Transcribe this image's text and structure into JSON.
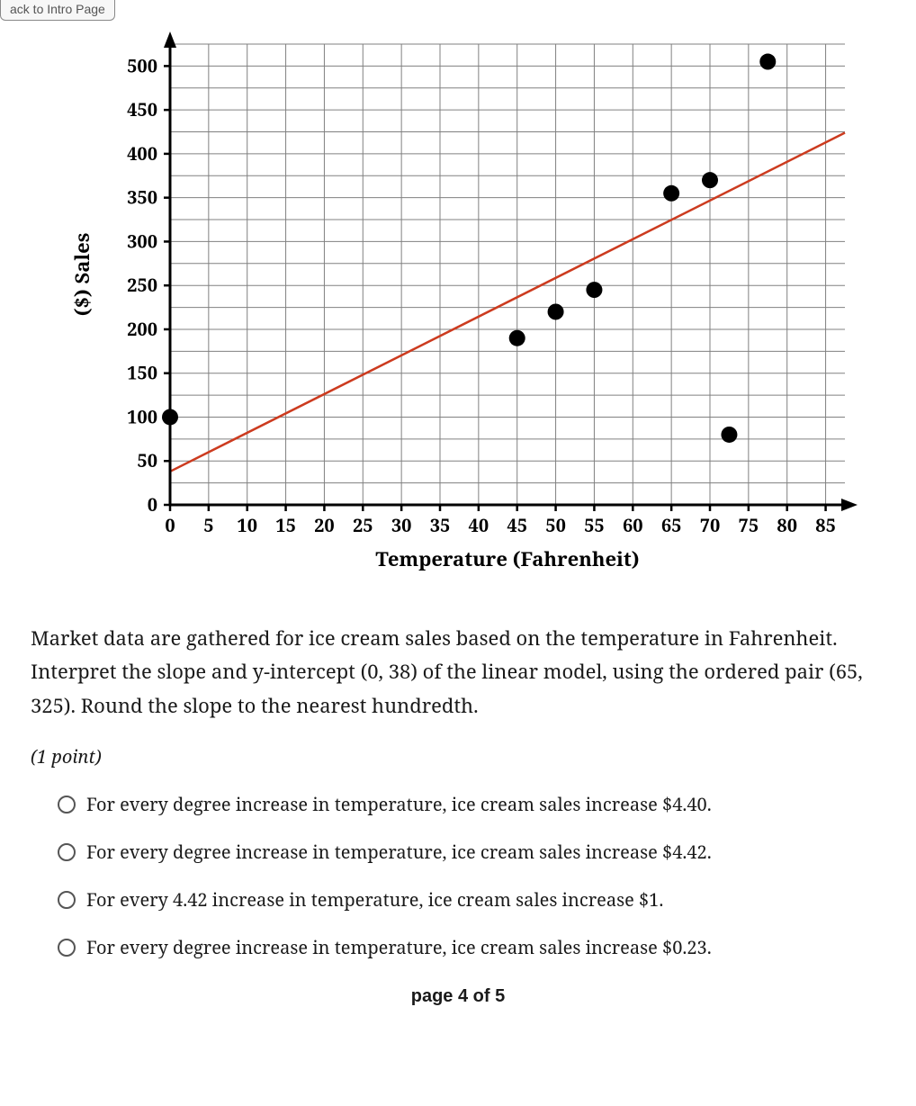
{
  "nav": {
    "back_label": "ack to Intro Page"
  },
  "chart": {
    "type": "scatter-with-line",
    "ylabel": "($) Sales",
    "xlabel": "Temperature (Fahrenheit)",
    "xlim": [
      0,
      87.5
    ],
    "ylim": [
      0,
      525
    ],
    "xtick_start": 0,
    "xtick_step": 5,
    "xtick_end": 85,
    "ytick_start": 0,
    "ytick_step": 50,
    "ytick_end": 500,
    "minor_grid_x_step": 5,
    "minor_grid_y_step": 25,
    "grid_color": "#808080",
    "grid_width": 1,
    "axis_color": "#000000",
    "axis_width": 3,
    "background_color": "#ffffff",
    "points": [
      {
        "x": 0,
        "y": 100
      },
      {
        "x": 45,
        "y": 190
      },
      {
        "x": 50,
        "y": 220
      },
      {
        "x": 55,
        "y": 245
      },
      {
        "x": 65,
        "y": 355
      },
      {
        "x": 70,
        "y": 370
      },
      {
        "x": 72.5,
        "y": 80
      },
      {
        "x": 77.5,
        "y": 505
      }
    ],
    "point_color": "#000000",
    "point_radius": 9,
    "line": {
      "x1": 0,
      "y1": 38,
      "x2": 87.5,
      "y2": 424
    },
    "line_color": "#cc3b1f",
    "line_width": 2.5,
    "label_fontsize": 22,
    "tick_fontsize": 20,
    "font_family": "Noto Serif, Georgia, serif"
  },
  "question": {
    "text": "Market data are gathered for ice cream sales based on the temperature in Fahrenheit. Interpret the slope and y-intercept (0, 38) of the linear model, using the ordered pair (65, 325). Round the slope to the nearest hundredth.",
    "points_label": "(1 point)"
  },
  "options": [
    {
      "text": "For every degree increase in temperature, ice cream sales increase $4.40."
    },
    {
      "text": "For every degree increase in temperature, ice cream sales increase $4.42."
    },
    {
      "text": "For every 4.42 increase in temperature, ice cream sales increase $1."
    },
    {
      "text": "For every degree increase in temperature, ice cream sales increase $0.23."
    }
  ],
  "pager": {
    "text": "page 4 of 5"
  }
}
